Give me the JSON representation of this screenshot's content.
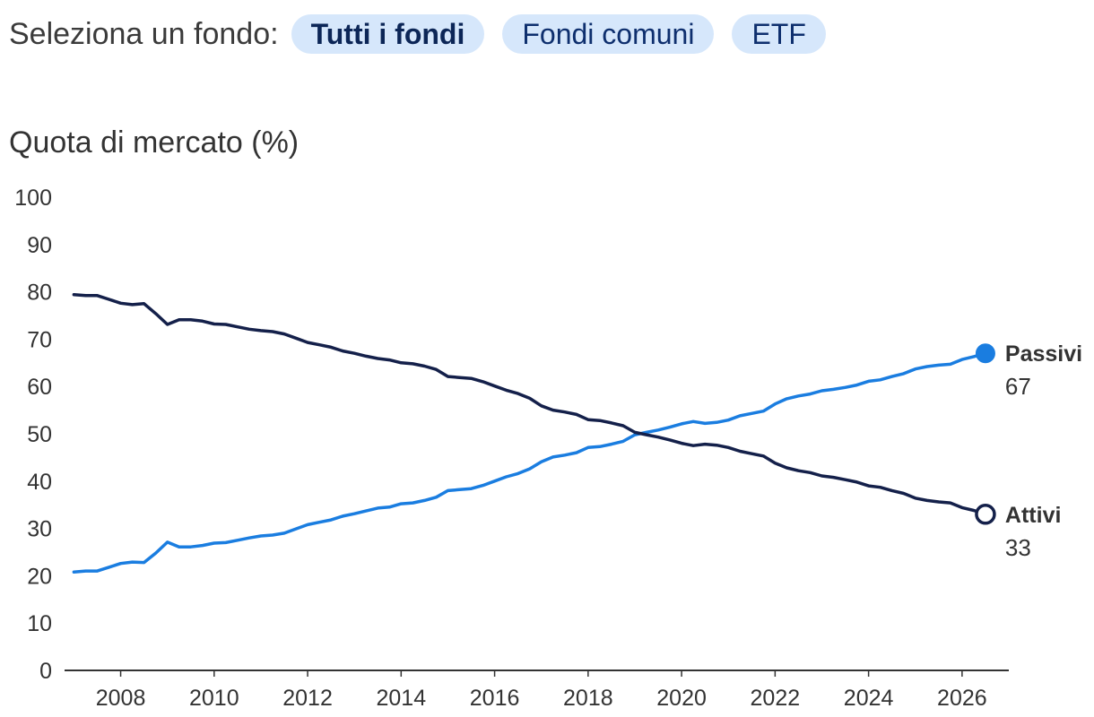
{
  "selector": {
    "label": "Seleziona un fondo:",
    "options": [
      {
        "label": "Tutti i fondi",
        "active": true
      },
      {
        "label": "Fondi comuni",
        "active": false
      },
      {
        "label": "ETF",
        "active": false
      }
    ]
  },
  "chart_data": {
    "type": "line",
    "ylabel": "Quota di mercato (%)",
    "xlabel": "",
    "xlim": [
      2006.8,
      2027.0
    ],
    "ylim": [
      0,
      100
    ],
    "yticks": [
      "0",
      "10",
      "20",
      "30",
      "40",
      "50",
      "60",
      "70",
      "80",
      "90",
      "100"
    ],
    "xticks": [
      "2008",
      "2010",
      "2012",
      "2014",
      "2016",
      "2018",
      "2020",
      "2022",
      "2024",
      "2026"
    ],
    "grid": false,
    "series": [
      {
        "name": "Passivi",
        "end_label": "67",
        "color": "#1a7de0",
        "marker": "filled",
        "x": [
          2007.0,
          2007.25,
          2007.5,
          2007.75,
          2008.0,
          2008.25,
          2008.5,
          2008.75,
          2009.0,
          2009.25,
          2009.5,
          2009.75,
          2010.0,
          2010.25,
          2010.5,
          2010.75,
          2011.0,
          2011.25,
          2011.5,
          2011.75,
          2012.0,
          2012.25,
          2012.5,
          2012.75,
          2013.0,
          2013.25,
          2013.5,
          2013.75,
          2014.0,
          2014.25,
          2014.5,
          2014.75,
          2015.0,
          2015.25,
          2015.5,
          2015.75,
          2016.0,
          2016.25,
          2016.5,
          2016.75,
          2017.0,
          2017.25,
          2017.5,
          2017.75,
          2018.0,
          2018.25,
          2018.5,
          2018.75,
          2019.0,
          2019.25,
          2019.5,
          2019.75,
          2020.0,
          2020.25,
          2020.5,
          2020.75,
          2021.0,
          2021.25,
          2021.5,
          2021.75,
          2022.0,
          2022.25,
          2022.5,
          2022.75,
          2023.0,
          2023.25,
          2023.5,
          2023.75,
          2024.0,
          2024.25,
          2024.5,
          2024.75,
          2025.0,
          2025.25,
          2025.5,
          2025.75,
          2026.0,
          2026.25,
          2026.5
        ],
        "values": [
          20.8,
          21.0,
          21.0,
          21.8,
          22.6,
          22.9,
          22.8,
          24.8,
          27.1,
          26.1,
          26.1,
          26.4,
          26.9,
          27.0,
          27.5,
          28.0,
          28.4,
          28.6,
          29.0,
          29.9,
          30.8,
          31.3,
          31.8,
          32.6,
          33.1,
          33.7,
          34.3,
          34.5,
          35.2,
          35.4,
          35.9,
          36.6,
          38.0,
          38.2,
          38.4,
          39.1,
          40.0,
          40.9,
          41.6,
          42.6,
          44.1,
          45.1,
          45.5,
          46.0,
          47.1,
          47.3,
          47.8,
          48.4,
          49.8,
          50.3,
          50.8,
          51.4,
          52.1,
          52.6,
          52.2,
          52.4,
          52.9,
          53.8,
          54.3,
          54.8,
          56.3,
          57.4,
          58.0,
          58.4,
          59.1,
          59.4,
          59.8,
          60.3,
          61.1,
          61.4,
          62.1,
          62.7,
          63.7,
          64.2,
          64.5,
          64.7,
          65.7,
          66.3,
          67.0
        ]
      },
      {
        "name": "Attivi",
        "end_label": "33",
        "color": "#14204a",
        "marker": "hollow",
        "x": [
          2007.0,
          2007.25,
          2007.5,
          2007.75,
          2008.0,
          2008.25,
          2008.5,
          2008.75,
          2009.0,
          2009.25,
          2009.5,
          2009.75,
          2010.0,
          2010.25,
          2010.5,
          2010.75,
          2011.0,
          2011.25,
          2011.5,
          2011.75,
          2012.0,
          2012.25,
          2012.5,
          2012.75,
          2013.0,
          2013.25,
          2013.5,
          2013.75,
          2014.0,
          2014.25,
          2014.5,
          2014.75,
          2015.0,
          2015.25,
          2015.5,
          2015.75,
          2016.0,
          2016.25,
          2016.5,
          2016.75,
          2017.0,
          2017.25,
          2017.5,
          2017.75,
          2018.0,
          2018.25,
          2018.5,
          2018.75,
          2019.0,
          2019.25,
          2019.5,
          2019.75,
          2020.0,
          2020.25,
          2020.5,
          2020.75,
          2021.0,
          2021.25,
          2021.5,
          2021.75,
          2022.0,
          2022.25,
          2022.5,
          2022.75,
          2023.0,
          2023.25,
          2023.5,
          2023.75,
          2024.0,
          2024.25,
          2024.5,
          2024.75,
          2025.0,
          2025.25,
          2025.5,
          2025.75,
          2026.0,
          2026.25,
          2026.5
        ],
        "values": [
          79.4,
          79.2,
          79.2,
          78.4,
          77.6,
          77.3,
          77.5,
          75.4,
          73.1,
          74.1,
          74.1,
          73.8,
          73.2,
          73.1,
          72.6,
          72.1,
          71.8,
          71.6,
          71.1,
          70.2,
          69.3,
          68.8,
          68.3,
          67.5,
          67.0,
          66.4,
          65.9,
          65.6,
          65.0,
          64.8,
          64.3,
          63.6,
          62.1,
          61.9,
          61.7,
          61.0,
          60.1,
          59.2,
          58.5,
          57.5,
          55.9,
          55.0,
          54.6,
          54.1,
          53.0,
          52.8,
          52.3,
          51.7,
          50.3,
          49.8,
          49.3,
          48.7,
          48.0,
          47.5,
          47.8,
          47.6,
          47.1,
          46.3,
          45.8,
          45.3,
          43.8,
          42.8,
          42.2,
          41.8,
          41.1,
          40.8,
          40.3,
          39.8,
          39.0,
          38.7,
          38.0,
          37.4,
          36.4,
          35.9,
          35.6,
          35.4,
          34.4,
          33.8,
          33.0
        ]
      }
    ]
  }
}
